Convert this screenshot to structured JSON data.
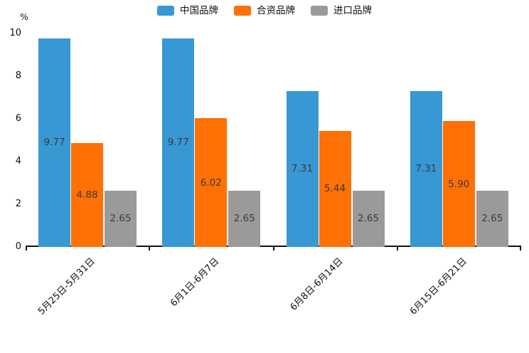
{
  "ylabel_unit": "%",
  "chart_data": {
    "type": "bar",
    "title": "",
    "xlabel": "",
    "ylabel": "%",
    "ylim": [
      0,
      10
    ],
    "yticks": [
      0,
      2,
      4,
      6,
      8,
      10
    ],
    "grid": false,
    "legend_position": "top-center",
    "value_labels": "centered inside bars, two decimals",
    "categories": [
      "5月25日-5月31日",
      "6月1日-6月7日",
      "6月8日-6月14日",
      "6月15日-6月21日"
    ],
    "series": [
      {
        "name": "中国品牌",
        "color": "#3798d3",
        "values": [
          9.77,
          9.77,
          7.31,
          7.31
        ]
      },
      {
        "name": "合资品牌",
        "color": "#ff7005",
        "values": [
          4.88,
          6.02,
          5.44,
          5.9
        ]
      },
      {
        "name": "进口品牌",
        "color": "#9a9a9a",
        "values": [
          2.65,
          2.65,
          2.65,
          2.65
        ]
      }
    ]
  },
  "colors": {
    "axis": "#111111",
    "tick_label": "#111111",
    "bar_value_label": "#3a3a3a",
    "background": "#ffffff"
  }
}
